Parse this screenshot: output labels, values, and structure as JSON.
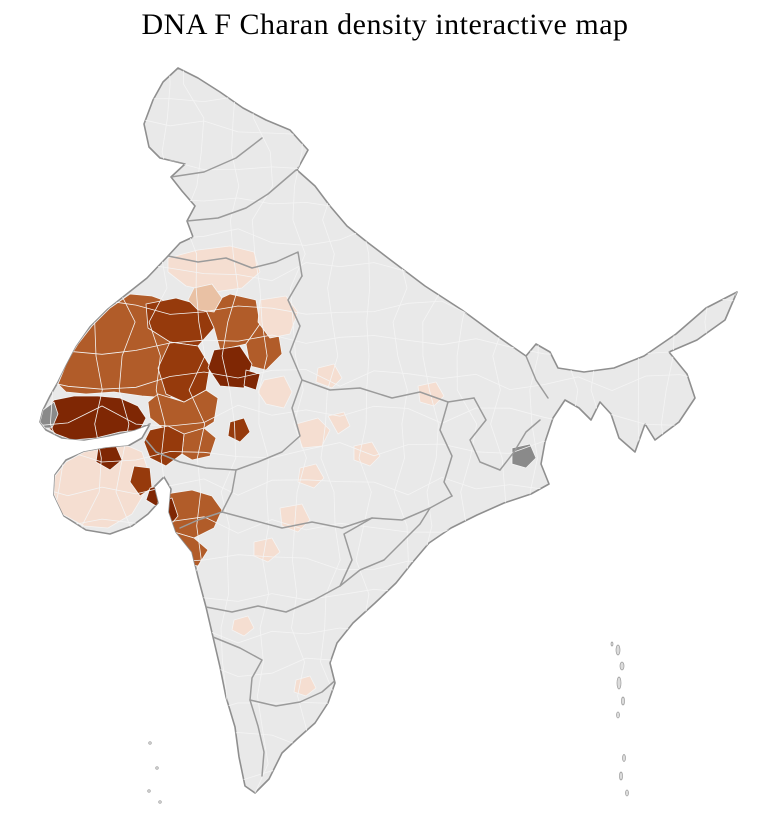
{
  "title": "DNA F Charan density interactive map",
  "map": {
    "label": "india-district-density-choropleth",
    "palette": {
      "page_background": "#ffffff",
      "land": "#e9e9e9",
      "outline": "#8f8f8f",
      "state_border": "#9b9b9b",
      "district_border": "#f4f4f4",
      "island": "#dcdcdc",
      "island_border": "#9b9b9b",
      "density_low": "#f5ded1",
      "density_midlow": "#e9c1a4",
      "density_high": "#b15c29",
      "density_higher": "#963a0c",
      "density_highest": "#7f2704",
      "no_data_gray": "#8a8a8a"
    },
    "regions": [
      {
        "id": "thar-desert-belt",
        "level": "density_high"
      },
      {
        "id": "churu-block",
        "level": "density_high"
      },
      {
        "id": "nagaur-east-block",
        "level": "density_high"
      },
      {
        "id": "pali-block",
        "level": "density_high"
      },
      {
        "id": "bikaner-block",
        "level": "density_higher"
      },
      {
        "id": "jodhpur-block",
        "level": "density_higher"
      },
      {
        "id": "shekhawati-block",
        "level": "density_highest"
      },
      {
        "id": "jaipur-small-block",
        "level": "density_highest"
      },
      {
        "id": "ajmer-small-block",
        "level": "density_higher"
      },
      {
        "id": "punjab-belt",
        "level": "density_low"
      },
      {
        "id": "haryana-patch",
        "level": "density_midlow"
      },
      {
        "id": "alwar-patch",
        "level": "density_low"
      },
      {
        "id": "kutch-block",
        "level": "density_highest"
      },
      {
        "id": "kutch-west-tip",
        "level": "no_data_gray"
      },
      {
        "id": "north-gujarat-medium",
        "level": "density_high"
      },
      {
        "id": "north-gujarat-dark",
        "level": "density_higher"
      },
      {
        "id": "saurashtra-block",
        "level": "density_low"
      },
      {
        "id": "saurashtra-dark-north",
        "level": "density_highest"
      },
      {
        "id": "saurashtra-dark-east",
        "level": "density_higher"
      },
      {
        "id": "bhavnagar-dark",
        "level": "density_highest"
      },
      {
        "id": "nashik-block",
        "level": "density_high"
      },
      {
        "id": "nashik-dark-west",
        "level": "density_highest"
      },
      {
        "id": "khandesh-block",
        "level": "density_high"
      },
      {
        "id": "konkan-dark",
        "level": "density_higher"
      },
      {
        "id": "mp-light-1",
        "level": "density_low"
      },
      {
        "id": "mp-light-2",
        "level": "density_low"
      },
      {
        "id": "mp-light-3",
        "level": "density_low"
      },
      {
        "id": "mp-light-4",
        "level": "density_low"
      },
      {
        "id": "up-light",
        "level": "density_low"
      },
      {
        "id": "central-light-1",
        "level": "density_low"
      },
      {
        "id": "central-light-2",
        "level": "density_low"
      },
      {
        "id": "south-light-1",
        "level": "density_low"
      },
      {
        "id": "south-light-2",
        "level": "density_low"
      },
      {
        "id": "east-gray-district",
        "level": "no_data_gray"
      },
      {
        "id": "rajasthan-east-light",
        "level": "density_low"
      },
      {
        "id": "gwalior-light",
        "level": "density_low"
      }
    ]
  }
}
